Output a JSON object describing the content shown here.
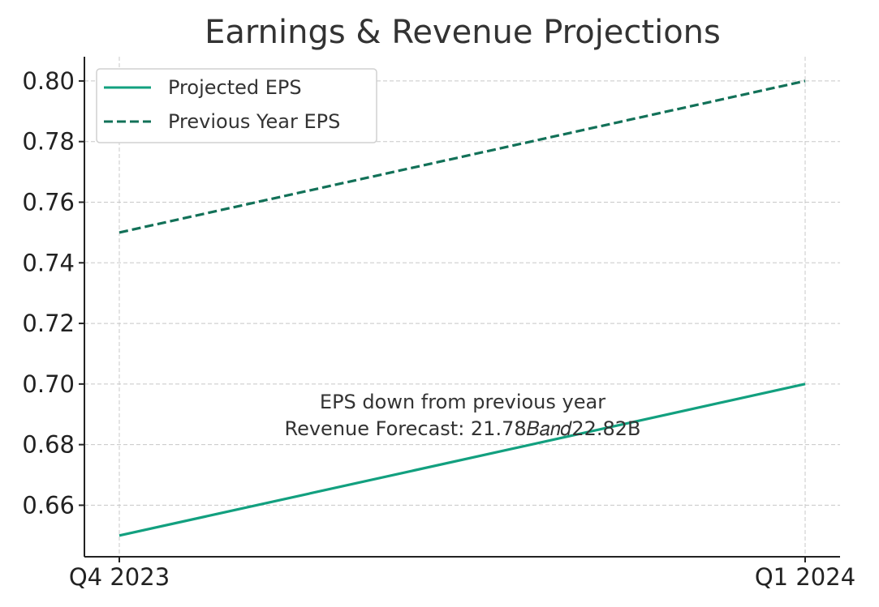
{
  "chart_data": {
    "type": "line",
    "title": "Earnings & Revenue Projections",
    "xlabel": "",
    "ylabel": "",
    "categories": [
      "Q4 2023",
      "Q1 2024"
    ],
    "yticks": [
      "0.66",
      "0.68",
      "0.70",
      "0.72",
      "0.74",
      "0.76",
      "0.78",
      "0.80"
    ],
    "ylim": [
      0.643,
      0.808
    ],
    "grid": true,
    "legend_position": "top-left",
    "series": [
      {
        "name": "Projected EPS",
        "values": [
          0.65,
          0.7
        ],
        "color": "#12a07f",
        "style": "solid"
      },
      {
        "name": "Previous Year EPS",
        "values": [
          0.75,
          0.8
        ],
        "color": "#127158",
        "style": "dashed"
      }
    ],
    "annotations": [
      "EPS down from previous year",
      "Revenue Forecast: 21.78𝐵𝑎𝑛𝑑22.82B"
    ]
  }
}
